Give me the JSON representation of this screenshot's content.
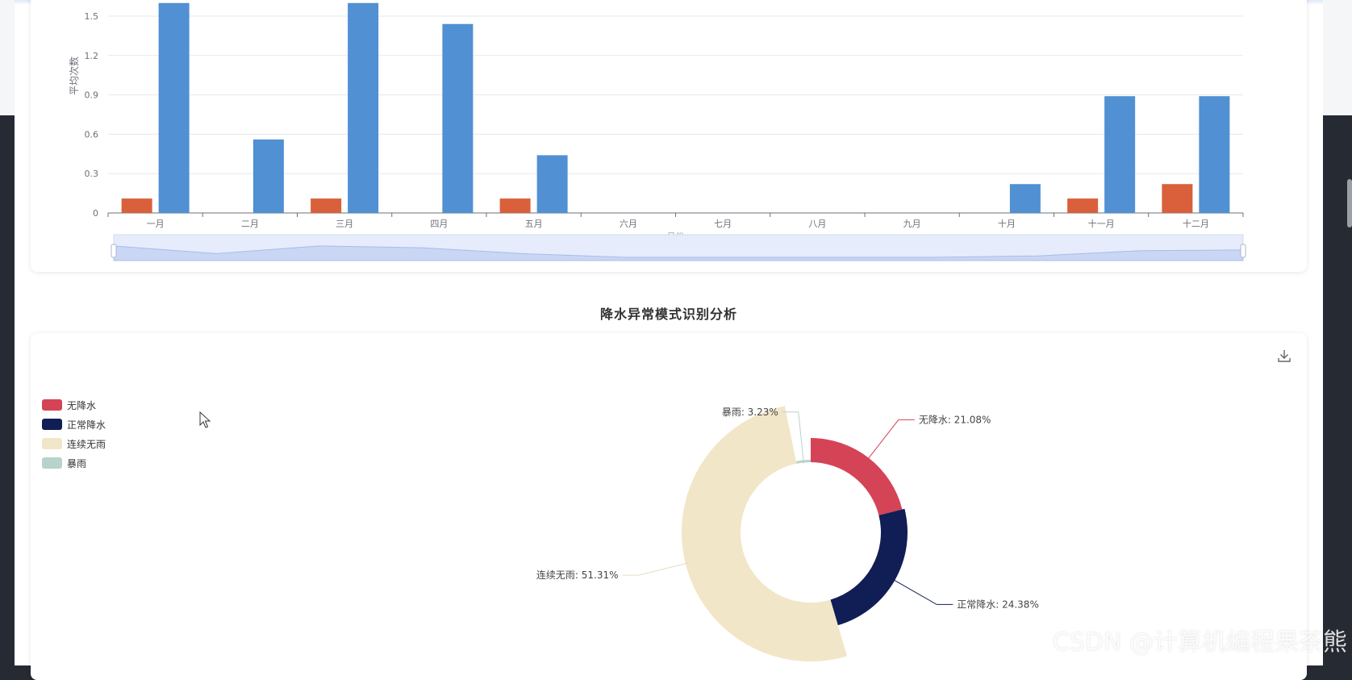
{
  "chart_data": [
    {
      "type": "bar",
      "ylabel": "平均次数",
      "xlabel": "月份",
      "categories": [
        "一月",
        "二月",
        "三月",
        "四月",
        "五月",
        "六月",
        "七月",
        "八月",
        "九月",
        "十月",
        "十一月",
        "十二月"
      ],
      "y_ticks": [
        "0",
        "0.3",
        "0.6",
        "0.9",
        "1.2",
        "1.5"
      ],
      "ylim": [
        0,
        1.5
      ],
      "series": [
        {
          "color": "#d9603b",
          "values": [
            0.11,
            0,
            0.11,
            0,
            0.11,
            0,
            0,
            0,
            0,
            0,
            0.11,
            0.22
          ]
        },
        {
          "color": "#5090d3",
          "values": [
            1.6,
            0.56,
            1.6,
            1.44,
            0.44,
            0,
            0,
            0,
            0,
            0.22,
            0.89,
            0.89
          ]
        }
      ],
      "grid": true,
      "data_zoom": true
    },
    {
      "type": "pie",
      "title": "降水异常模式识别分析",
      "legend_position": "top-left",
      "slices": [
        {
          "name": "无降水",
          "value": 21.08,
          "label": "无降水: 21.08%",
          "color": "#d44456"
        },
        {
          "name": "正常降水",
          "value": 24.38,
          "label": "正常降水: 24.38%",
          "color": "#111e55"
        },
        {
          "name": "连续无雨",
          "value": 51.31,
          "label": "连续无雨: 51.31%",
          "color": "#f2e6c8"
        },
        {
          "name": "暴雨",
          "value": 3.23,
          "label": "暴雨: 3.23%",
          "color": "#b8d3c9"
        }
      ]
    }
  ],
  "watermark": "CSDN @计算机编程果茶熊",
  "icons": {
    "download": "download-icon",
    "cursor": "mouse-cursor-icon"
  }
}
